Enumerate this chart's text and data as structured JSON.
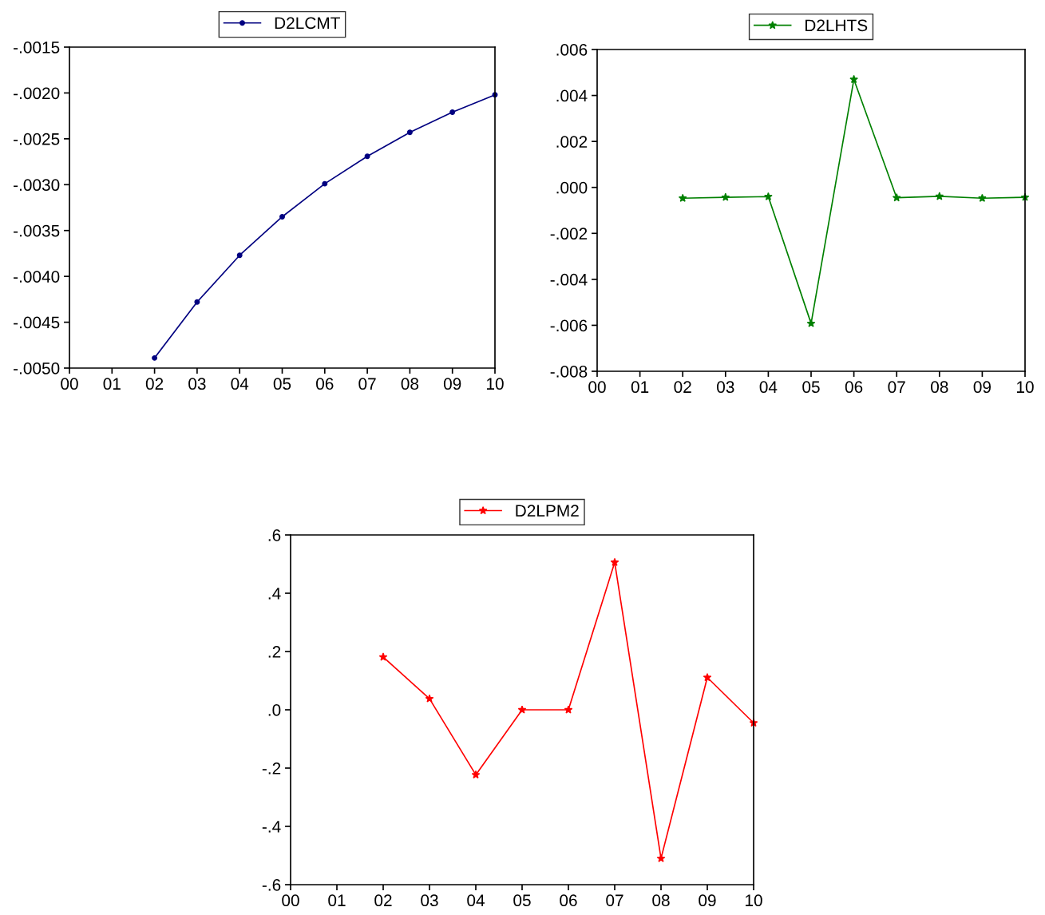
{
  "chart_data": [
    {
      "type": "line",
      "categories": [
        "00",
        "01",
        "02",
        "03",
        "04",
        "05",
        "06",
        "07",
        "08",
        "09",
        "10"
      ],
      "series": [
        {
          "name": "D2LCMT",
          "color": "#000080",
          "values": [
            null,
            null,
            -0.00489,
            -0.00428,
            -0.00377,
            -0.00335,
            -0.00299,
            -0.00269,
            -0.00243,
            -0.00221,
            -0.00202
          ]
        }
      ],
      "ylim": [
        -0.005,
        -0.0015
      ],
      "yticks": [
        {
          "value": -0.005,
          "label": "-.0050"
        },
        {
          "value": -0.0045,
          "label": "-.0045"
        },
        {
          "value": -0.004,
          "label": "-.0040"
        },
        {
          "value": -0.0035,
          "label": "-.0035"
        },
        {
          "value": -0.003,
          "label": "-.0030"
        },
        {
          "value": -0.0025,
          "label": "-.0025"
        },
        {
          "value": -0.002,
          "label": "-.0020"
        },
        {
          "value": -0.0015,
          "label": "-.0015"
        }
      ],
      "marker": "circle",
      "line_style": "solid",
      "grid": false,
      "legend": "top"
    },
    {
      "type": "line",
      "categories": [
        "00",
        "01",
        "02",
        "03",
        "04",
        "05",
        "06",
        "07",
        "08",
        "09",
        "10"
      ],
      "series": [
        {
          "name": "D2LHTS",
          "color": "#008000",
          "values": [
            null,
            null,
            -0.00047,
            -0.00043,
            -0.0004,
            -0.00592,
            0.0047,
            -0.00045,
            -0.00039,
            -0.00047,
            -0.00043
          ]
        }
      ],
      "ylim": [
        -0.008,
        0.006
      ],
      "yticks": [
        {
          "value": -0.008,
          "label": "-.008"
        },
        {
          "value": -0.006,
          "label": "-.006"
        },
        {
          "value": -0.004,
          "label": "-.004"
        },
        {
          "value": -0.002,
          "label": "-.002"
        },
        {
          "value": 0,
          "label": ".000"
        },
        {
          "value": 0.002,
          "label": ".002"
        },
        {
          "value": 0.004,
          "label": ".004"
        },
        {
          "value": 0.006,
          "label": ".006"
        }
      ],
      "marker": "star",
      "line_style": "solid",
      "grid": false,
      "legend": "top"
    },
    {
      "type": "line",
      "categories": [
        "00",
        "01",
        "02",
        "03",
        "04",
        "05",
        "06",
        "07",
        "08",
        "09",
        "10"
      ],
      "series": [
        {
          "name": "D2LPM2",
          "color": "#ff0000",
          "values": [
            null,
            null,
            0.181,
            0.038,
            -0.223,
            0.0,
            0.0,
            0.506,
            -0.51,
            0.111,
            -0.045
          ]
        }
      ],
      "ylim": [
        -0.6,
        0.6
      ],
      "yticks": [
        {
          "value": -0.6,
          "label": "-.6"
        },
        {
          "value": -0.4,
          "label": "-.4"
        },
        {
          "value": -0.2,
          "label": "-.2"
        },
        {
          "value": 0,
          "label": ".0"
        },
        {
          "value": 0.2,
          "label": ".2"
        },
        {
          "value": 0.4,
          "label": ".4"
        },
        {
          "value": 0.6,
          "label": ".6"
        }
      ],
      "marker": "star",
      "line_style": "solid",
      "grid": false,
      "legend": "top"
    }
  ]
}
